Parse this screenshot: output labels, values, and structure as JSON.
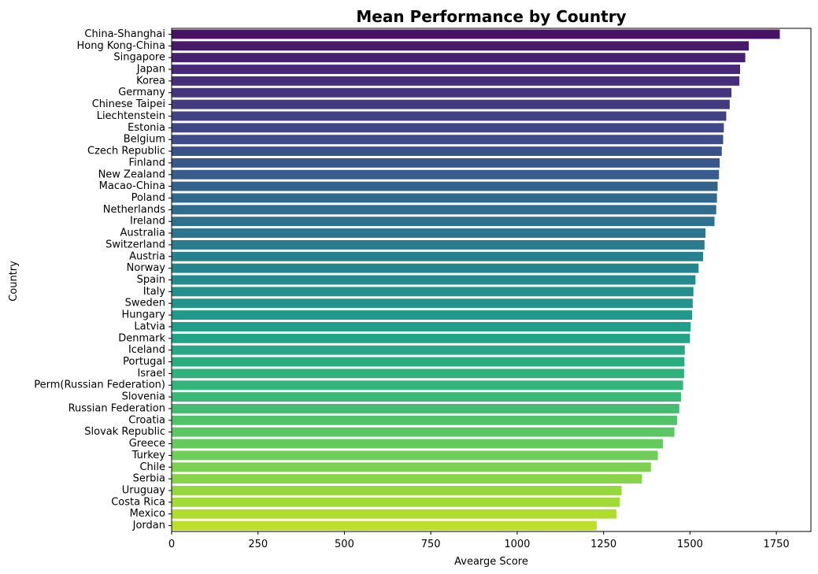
{
  "chart_data": {
    "type": "bar",
    "orientation": "horizontal",
    "title": "Mean Performance by Country",
    "xlabel": "Avearge Score",
    "ylabel": "Country",
    "xlim": [
      0,
      1850
    ],
    "xticks": [
      0,
      250,
      500,
      750,
      1000,
      1250,
      1500,
      1750
    ],
    "grid": false,
    "palette": "viridis",
    "categories": [
      "China-Shanghai",
      "Hong Kong-China",
      "Singapore",
      "Japan",
      "Korea",
      "Germany",
      "Chinese Taipei",
      "Liechtenstein",
      "Estonia",
      "Belgium",
      "Czech Republic",
      "Finland",
      "New Zealand",
      "Macao-China",
      "Poland",
      "Netherlands",
      "Ireland",
      "Australia",
      "Switzerland",
      "Austria",
      "Norway",
      "Spain",
      "Italy",
      "Sweden",
      "Hungary",
      "Latvia",
      "Denmark",
      "Iceland",
      "Portugal",
      "Israel",
      "Perm(Russian Federation)",
      "Slovenia",
      "Russian Federation",
      "Croatia",
      "Slovak Republic",
      "Greece",
      "Turkey",
      "Chile",
      "Serbia",
      "Uruguay",
      "Costa Rica",
      "Mexico",
      "Jordan"
    ],
    "values": [
      1760,
      1670,
      1660,
      1645,
      1643,
      1620,
      1615,
      1605,
      1598,
      1596,
      1592,
      1586,
      1584,
      1580,
      1578,
      1576,
      1571,
      1545,
      1542,
      1538,
      1525,
      1516,
      1510,
      1508,
      1506,
      1502,
      1500,
      1485,
      1484,
      1483,
      1480,
      1474,
      1469,
      1463,
      1455,
      1422,
      1407,
      1387,
      1361,
      1302,
      1297,
      1287,
      1230
    ]
  }
}
